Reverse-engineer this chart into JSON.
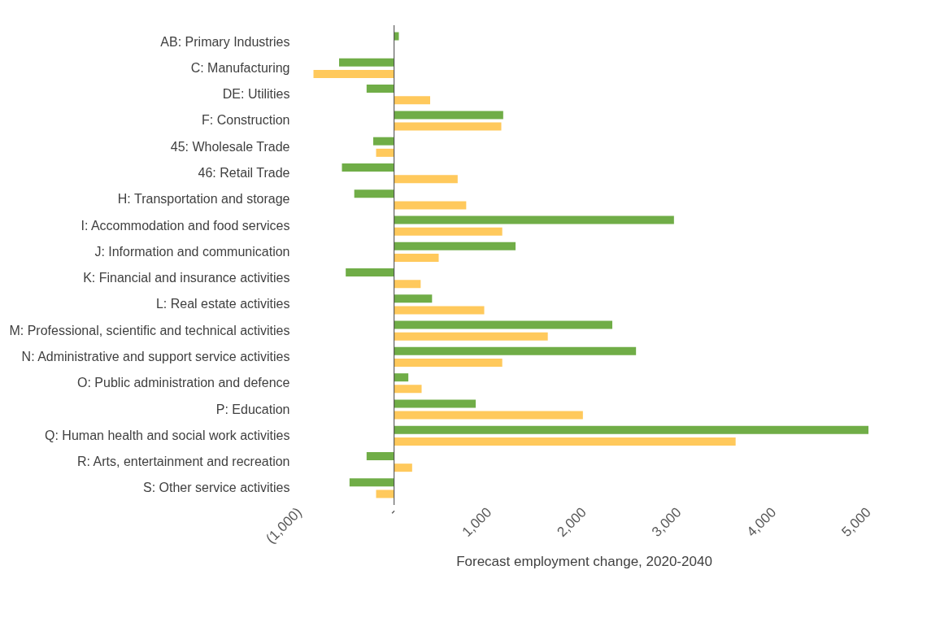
{
  "chart_data": {
    "type": "bar",
    "orientation": "horizontal",
    "xlabel": "Forecast employment change, 2020-2040",
    "categories": [
      "AB: Primary Industries",
      "C: Manufacturing",
      "DE: Utilities",
      "F: Construction",
      "45: Wholesale Trade",
      "46: Retail Trade",
      "H: Transportation and storage",
      "I: Accommodation and food services",
      "J: Information and communication",
      "K: Financial and insurance activities",
      "L: Real estate activities",
      "M: Professional, scientific and technical activities",
      "N: Administrative and support service activities",
      "O: Public administration and defence",
      "P: Education",
      "Q: Human health and social work activities",
      "R: Arts, entertainment and recreation",
      "S: Other service activities"
    ],
    "series": [
      {
        "color": "#70ad47",
        "values": [
          50,
          -580,
          -290,
          1150,
          -220,
          -550,
          -420,
          2950,
          1280,
          -510,
          400,
          2300,
          2550,
          150,
          860,
          5000,
          -290,
          -470
        ]
      },
      {
        "color": "#ffc95c",
        "values": [
          0,
          -850,
          380,
          1130,
          -190,
          670,
          760,
          1140,
          470,
          280,
          950,
          1620,
          1140,
          290,
          1990,
          3600,
          190,
          -190
        ]
      }
    ],
    "xlim": [
      -1000,
      5000
    ],
    "xticks": [
      {
        "value": -1000,
        "label": "(1,000)"
      },
      {
        "value": 0,
        "label": "-"
      },
      {
        "value": 1000,
        "label": "1,000"
      },
      {
        "value": 2000,
        "label": "2,000"
      },
      {
        "value": 3000,
        "label": "3,000"
      },
      {
        "value": 4000,
        "label": "4,000"
      },
      {
        "value": 5000,
        "label": "5,000"
      }
    ],
    "ref_lines": [
      {
        "axis": "x",
        "value": 0,
        "color": "#404040"
      }
    ],
    "grid": false,
    "legend": false
  }
}
